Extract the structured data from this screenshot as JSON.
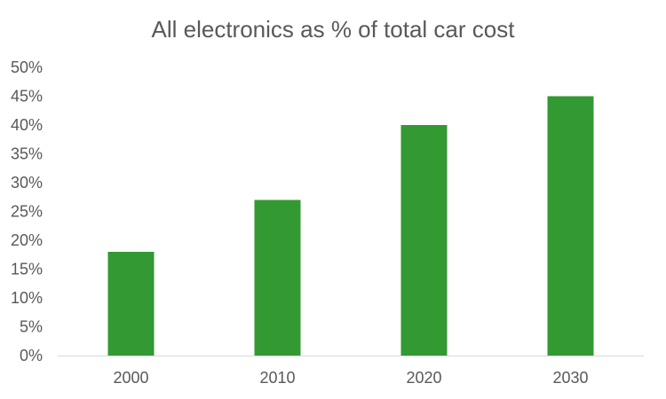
{
  "chart_data": {
    "type": "bar",
    "title": "All electronics as % of total car cost",
    "categories": [
      "2000",
      "2010",
      "2020",
      "2030"
    ],
    "series": [
      {
        "name": "Electronics share",
        "values": [
          18,
          27,
          40,
          45
        ],
        "color": "#339933"
      }
    ],
    "xlabel": "",
    "ylabel": "",
    "ylim": [
      0,
      50
    ],
    "yticks": [
      0,
      5,
      10,
      15,
      20,
      25,
      30,
      35,
      40,
      45,
      50
    ],
    "ytick_labels": [
      "0%",
      "5%",
      "10%",
      "15%",
      "20%",
      "25%",
      "30%",
      "35%",
      "40%",
      "45%",
      "50%"
    ],
    "grid": false,
    "legend": "none"
  }
}
